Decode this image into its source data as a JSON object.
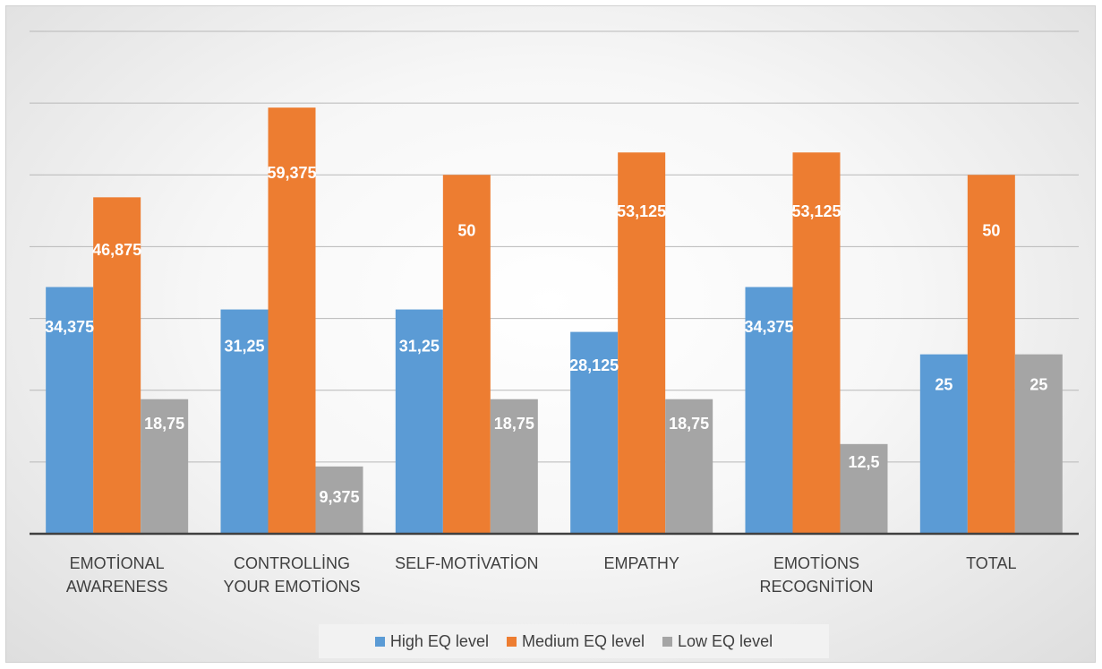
{
  "chart_data": {
    "type": "bar",
    "categories": [
      [
        "EMOTİONAL",
        "AWARENESS"
      ],
      [
        "CONTROLLİNG",
        "YOUR EMOTİONS"
      ],
      [
        "SELF-MOTİVATİON"
      ],
      [
        "EMPATHY"
      ],
      [
        "EMOTİONS",
        "RECOGNİTİON"
      ],
      [
        "TOTAL"
      ]
    ],
    "series": [
      {
        "name": "High EQ level",
        "color": "#5b9bd5",
        "values": [
          34.375,
          31.25,
          31.25,
          28.125,
          34.375,
          25
        ],
        "labels": [
          "34,375",
          "31,25",
          "31,25",
          "28,125",
          "34,375",
          "25"
        ]
      },
      {
        "name": "Medium EQ level",
        "color": "#ed7d31",
        "values": [
          46.875,
          59.375,
          50,
          53.125,
          53.125,
          50
        ],
        "labels": [
          "46,875",
          "59,375",
          "50",
          "53,125",
          "53,125",
          "50"
        ]
      },
      {
        "name": "Low EQ level",
        "color": "#a5a5a5",
        "values": [
          18.75,
          9.375,
          18.75,
          18.75,
          12.5,
          25
        ],
        "labels": [
          "18,75",
          "9,375",
          "18,75",
          "18,75",
          "12,5",
          "25"
        ]
      }
    ],
    "ylim": [
      0,
      70
    ],
    "gridlines": true,
    "legend_position": "bottom",
    "xlabel": "",
    "ylabel": ""
  }
}
